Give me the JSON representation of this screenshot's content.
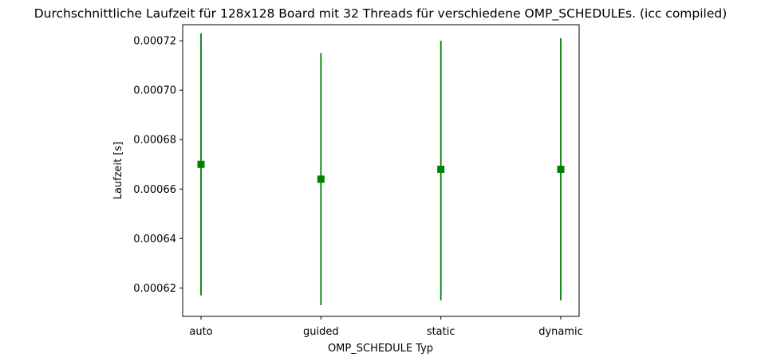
{
  "chart_data": {
    "type": "scatter",
    "title": "Durchschnittliche Laufzeit für 128x128 Board mit 32 Threads für verschiedene OMP_SCHEDULEs. (icc compiled)",
    "xlabel": "OMP_SCHEDULE Typ",
    "ylabel": "Laufzeit [s]",
    "categories": [
      "auto",
      "guided",
      "static",
      "dynamic"
    ],
    "series": [
      {
        "values": [
          0.00067,
          0.000664,
          0.000668,
          0.000668
        ],
        "error_low": [
          0.000617,
          0.000613,
          0.000615,
          0.000615
        ],
        "error_high": [
          0.000723,
          0.000715,
          0.00072,
          0.000721
        ],
        "marker": "square",
        "color": "#008000"
      }
    ],
    "ylim": [
      0.0006085,
      0.0007265
    ],
    "yticks": [
      0.00062,
      0.00064,
      0.00066,
      0.00068,
      0.0007,
      0.00072
    ],
    "ytick_labels": [
      "0.00062",
      "0.00064",
      "0.00066",
      "0.00068",
      "0.00070",
      "0.00072"
    ],
    "grid": false
  }
}
